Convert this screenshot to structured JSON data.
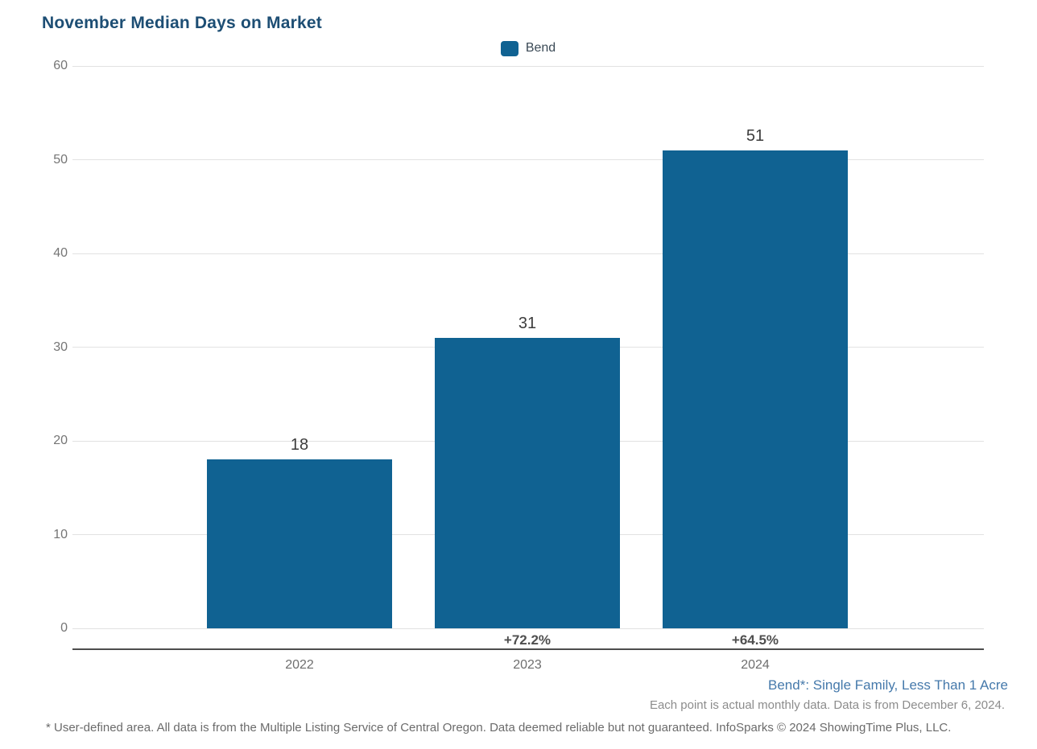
{
  "title": "November Median Days on Market",
  "legend": {
    "items": [
      {
        "label": "Bend",
        "color": "#106292"
      }
    ]
  },
  "chart_data": {
    "type": "bar",
    "title": "November Median Days on Market",
    "categories": [
      "2022",
      "2023",
      "2024"
    ],
    "series": [
      {
        "name": "Bend",
        "values": [
          18,
          31,
          51
        ]
      }
    ],
    "value_labels": [
      "18",
      "31",
      "51"
    ],
    "pct_change_labels": [
      "",
      "+72.2%",
      "+64.5%"
    ],
    "xlabel": "",
    "ylabel": "",
    "ylim": [
      0,
      60
    ],
    "yticks": [
      0,
      10,
      20,
      30,
      40,
      50,
      60
    ],
    "grid": true,
    "legend_position": "top-center",
    "bar_color": "#106292"
  },
  "annotations": {
    "series_note": "Bend*: Single Family, Less Than 1 Acre",
    "data_note": "Each point is actual monthly data. Data is from December 6, 2024.",
    "footer": "* User-defined area. All data is from the Multiple Listing Service of Central Oregon. Data deemed reliable but not guaranteed. InfoSparks © 2024 ShowingTime Plus, LLC."
  }
}
